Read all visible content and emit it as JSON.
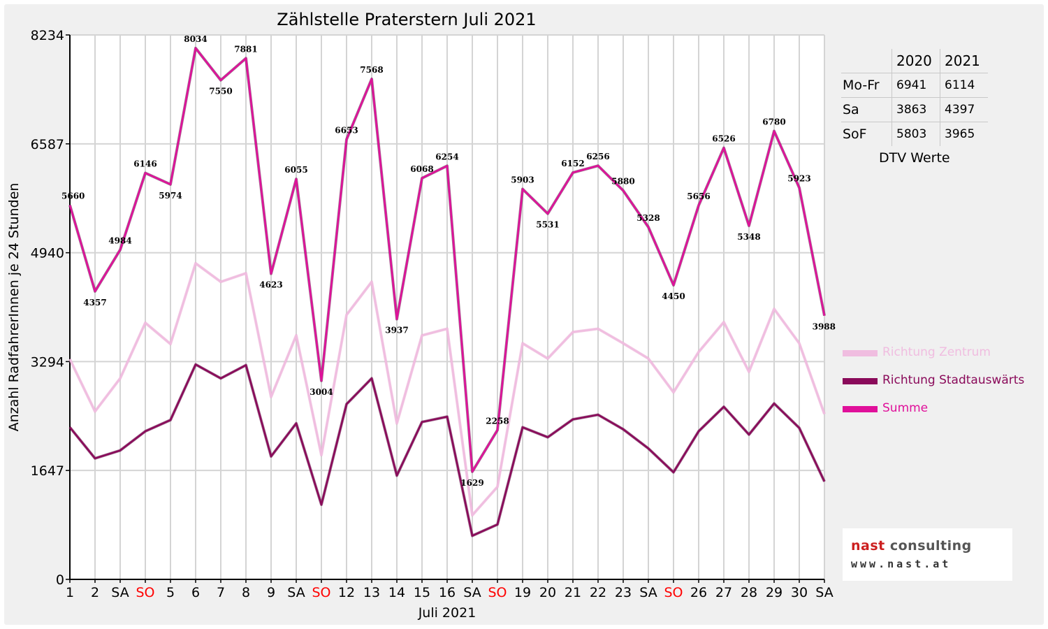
{
  "chart_data": {
    "type": "line",
    "title": "Zählstelle Praterstern Juli 2021",
    "xlabel": "Juli 2021",
    "ylabel": "Anzahl RadfahrerInnen je 24 Stunden",
    "ylim": [
      0,
      8234
    ],
    "yticks": [
      "0",
      "1647",
      "3294",
      "4940",
      "6587",
      "8234"
    ],
    "grid": true,
    "legend_position": "right",
    "categories": [
      "1",
      "2",
      "SA",
      "SO",
      "5",
      "6",
      "7",
      "8",
      "9",
      "SA",
      "SO",
      "12",
      "13",
      "14",
      "15",
      "16",
      "SA",
      "SO",
      "19",
      "20",
      "21",
      "22",
      "23",
      "SA",
      "SO",
      "26",
      "27",
      "28",
      "29",
      "30",
      "SA"
    ],
    "sunday_color": "#ff0000",
    "series": [
      {
        "name": "Richtung Zentrum",
        "color": "#f0bde0",
        "values": [
          3330,
          2540,
          3040,
          3880,
          3560,
          4780,
          4500,
          4630,
          2760,
          3690,
          1880,
          4000,
          4500,
          2360,
          3690,
          3790,
          970,
          1400,
          3570,
          3340,
          3740,
          3790,
          3570,
          3340,
          2830,
          3440,
          3890,
          3140,
          4090,
          3570,
          2500
        ]
      },
      {
        "name": "Richtung Stadtauswärts",
        "color": "#8a0a5a",
        "values": [
          2300,
          1830,
          1950,
          2240,
          2410,
          3250,
          3040,
          3240,
          1860,
          2360,
          1130,
          2650,
          3040,
          1570,
          2380,
          2460,
          660,
          830,
          2300,
          2150,
          2420,
          2490,
          2270,
          1980,
          1620,
          2240,
          2610,
          2190,
          2660,
          2290,
          1480
        ]
      },
      {
        "name": "Summe",
        "color": "#e0109a",
        "values": [
          5660,
          4357,
          4984,
          6146,
          5974,
          8034,
          7550,
          7881,
          4623,
          6055,
          3004,
          6653,
          7568,
          3937,
          6068,
          6254,
          1629,
          2258,
          5903,
          5531,
          6152,
          6256,
          5880,
          5328,
          4450,
          5656,
          6526,
          5348,
          6780,
          5923,
          3988
        ]
      }
    ],
    "data_labels": [
      "5660",
      "4357",
      "4984",
      "6146",
      "5974",
      "8034",
      "7550",
      "7881",
      "4623",
      "6055",
      "3004",
      "6653",
      "7568",
      "3937",
      "6068",
      "6254",
      "1629",
      "2258",
      "5903",
      "5531",
      "6152",
      "6256",
      "5880",
      "5328",
      "4450",
      "5656",
      "6526",
      "5348",
      "6780",
      "5923",
      "3988"
    ]
  },
  "dtv_table": {
    "headers": [
      "",
      "2020",
      "2021"
    ],
    "rows": [
      {
        "label": "Mo-Fr",
        "y2020": "6941",
        "y2021": "6114"
      },
      {
        "label": "Sa",
        "y2020": "3863",
        "y2021": "4397"
      },
      {
        "label": "SoF",
        "y2020": "5803",
        "y2021": "3965"
      }
    ],
    "caption": "DTV Werte"
  },
  "logo": {
    "name_part1": "nast",
    "name_part2": " consulting",
    "url": "www.nast.at"
  }
}
